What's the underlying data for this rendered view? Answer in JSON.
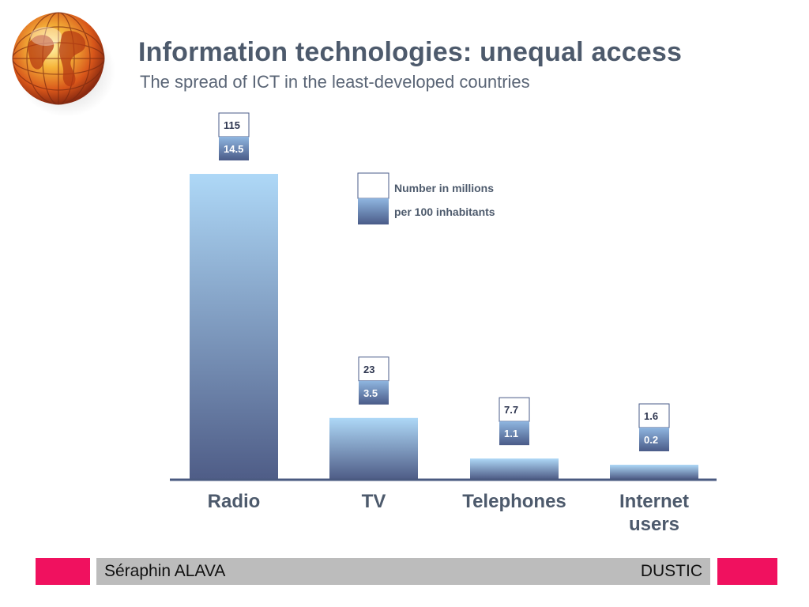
{
  "slide": {
    "title": "Information technologies: unequal access",
    "subtitle": "The spread of ICT in the least-developed countries"
  },
  "legend": {
    "millions_label": "Number in millions",
    "per100_label": "per 100 inhabitants"
  },
  "footer": {
    "author": "Séraphin ALAVA",
    "org": "DUSTIC"
  },
  "colors": {
    "accent": "#f0115f",
    "bar_top": "#aed8f7",
    "bar_bottom": "#4f5d87",
    "title": "#4d5a6c",
    "axis": "#4a5a80",
    "footer_bar": "#bcbcbc"
  },
  "icons": {
    "logo": "globe-icon"
  },
  "chart_data": {
    "type": "bar",
    "title": "Information technologies: unequal access",
    "subtitle": "The spread of ICT in the least-developed countries",
    "categories": [
      "Radio",
      "TV",
      "Telephones",
      "Internet\nusers"
    ],
    "series": [
      {
        "name": "Number in millions",
        "values": [
          115,
          23,
          7.7,
          1.6
        ]
      },
      {
        "name": "per 100 inhabitants",
        "values": [
          14.5,
          3.5,
          1.1,
          0.2
        ]
      }
    ],
    "bar_series": "Number in millions",
    "legend_position": "top-center",
    "grid": false,
    "ylim": [
      0,
      115
    ]
  }
}
